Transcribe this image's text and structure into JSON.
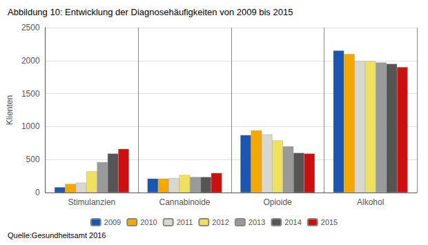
{
  "chart_data": {
    "type": "bar",
    "title": "Abbildung 10: Entwicklung der Diagnosehäufigkeiten von 2009 bis 2015",
    "source": "Quelle:Gesundheitsamt 2016",
    "ylabel": "Klienten",
    "categories": [
      "Stimulanzien",
      "Cannabinoide",
      "Opioide",
      "Alkohol"
    ],
    "series": [
      {
        "name": "2009",
        "color": "#1a56b0",
        "values": [
          80,
          210,
          870,
          2150
        ]
      },
      {
        "name": "2010",
        "color": "#f5a800",
        "values": [
          130,
          210,
          940,
          2100
        ]
      },
      {
        "name": "2011",
        "color": "#d8d8d0",
        "values": [
          150,
          220,
          880,
          1990
        ]
      },
      {
        "name": "2012",
        "color": "#f0e060",
        "values": [
          320,
          265,
          790,
          1990
        ]
      },
      {
        "name": "2013",
        "color": "#9a9a9a",
        "values": [
          460,
          235,
          700,
          1970
        ]
      },
      {
        "name": "2014",
        "color": "#555555",
        "values": [
          590,
          235,
          600,
          1950
        ]
      },
      {
        "name": "2015",
        "color": "#cc1010",
        "values": [
          660,
          295,
          590,
          1900
        ]
      }
    ],
    "ylim": [
      0,
      2500
    ],
    "yticks": [
      0,
      500,
      1000,
      1500,
      2000,
      2500
    ],
    "grid": true,
    "legend": "bottom"
  }
}
